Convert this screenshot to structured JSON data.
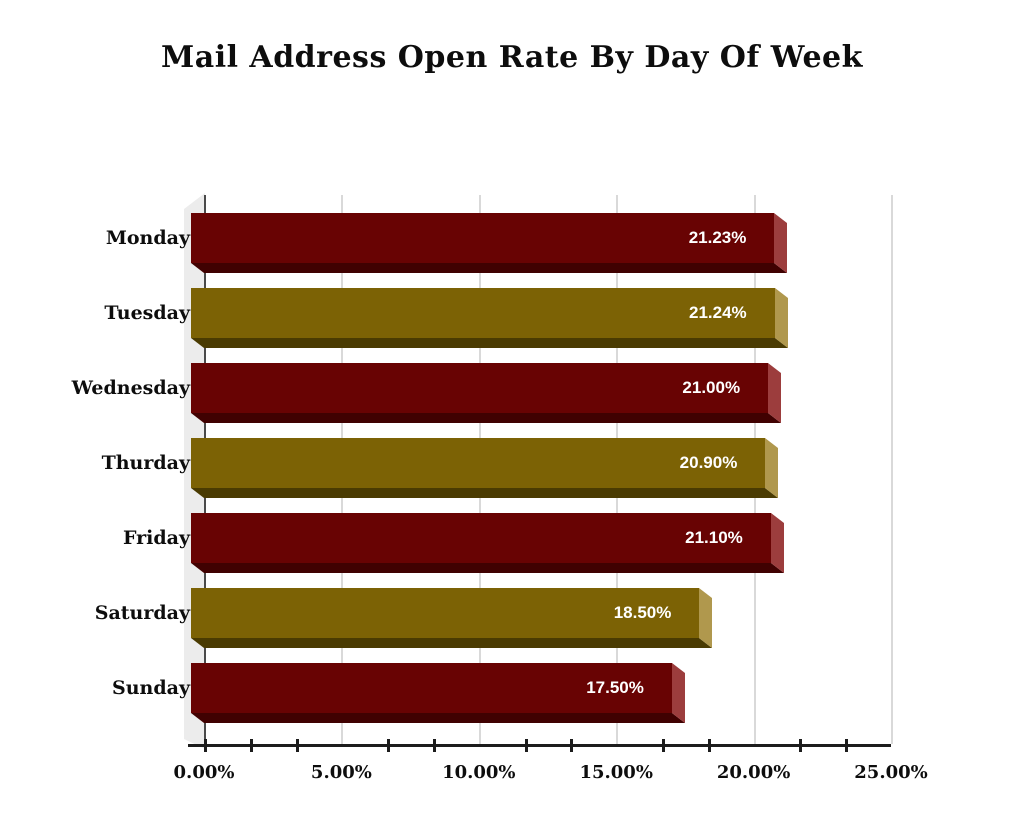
{
  "title": "Mail Address Open Rate By Day Of Week",
  "chart_data": {
    "type": "bar",
    "orientation": "horizontal",
    "title": "Mail Address Open Rate By Day Of Week",
    "categories": [
      "Monday",
      "Tuesday",
      "Wednesday",
      "Thurday",
      "Friday",
      "Saturday",
      "Sunday"
    ],
    "values": [
      21.23,
      21.24,
      21.0,
      20.9,
      21.1,
      18.5,
      17.5
    ],
    "value_labels": [
      "21.23%",
      "21.24%",
      "21.00%",
      "20.90%",
      "21.10%",
      "18.50%",
      "17.50%"
    ],
    "bar_styles": [
      "red",
      "olive",
      "red",
      "olive",
      "red",
      "olive",
      "red"
    ],
    "x_axis": {
      "min": 0,
      "max": 25,
      "major_step": 5,
      "minor_divisions_per_major": 3,
      "tick_labels": [
        "0.00%",
        "5.00%",
        "10.00%",
        "15.00%",
        "20.00%",
        "25.00%"
      ]
    },
    "grid": "vertical-major",
    "legend": "none",
    "effect": "3d-beveled-bars"
  },
  "colors": {
    "red": {
      "face": "#680303",
      "bottom": "#400101",
      "side": "#9c3d3d"
    },
    "olive": {
      "face": "#7c6205",
      "bottom": "#4a3b02",
      "side": "#b0984d"
    },
    "gridline": "#d9d9d9",
    "zero_line": "#4a4a4a",
    "axis": "#1c1c1c",
    "wall": "#ececec",
    "value_text": "#ffffff",
    "label_text": "#0d0d0d",
    "background": "#ffffff"
  }
}
